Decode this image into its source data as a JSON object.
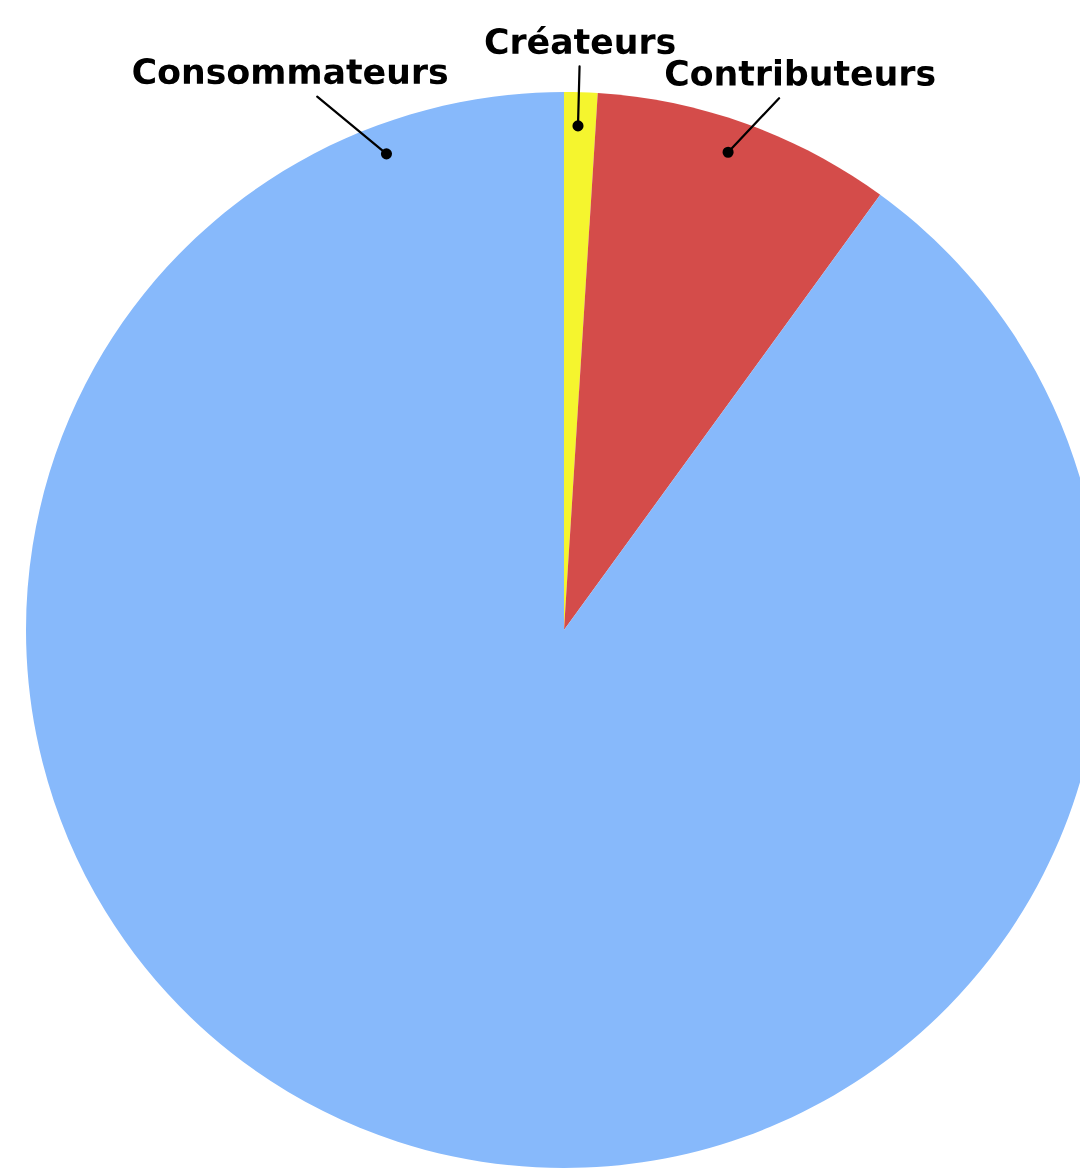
{
  "chart_data": {
    "type": "pie",
    "categories": [
      "Créateurs",
      "Contributeurs",
      "Consommateurs"
    ],
    "values": [
      1,
      9,
      90
    ],
    "colors": [
      "#f5f52e",
      "#d44c4a",
      "#87b9fb"
    ]
  }
}
